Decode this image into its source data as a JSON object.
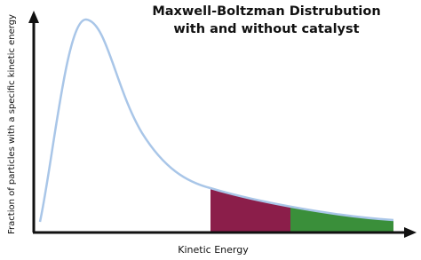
{
  "title": {
    "lines": [
      "Maxwell-Boltzman Distrubution",
      "with and without catalyst"
    ]
  },
  "axes": {
    "x_label": "Kinetic Energy",
    "y_label": "Fraction of particles with a specific kinetic energy"
  }
}
